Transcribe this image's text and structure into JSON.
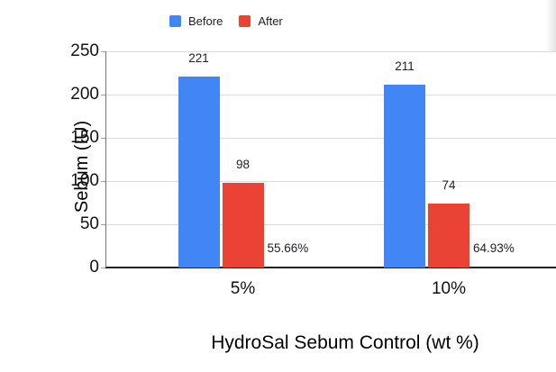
{
  "chart_data": {
    "type": "bar",
    "title": "",
    "categories": [
      "5%",
      "10%"
    ],
    "series": [
      {
        "name": "Before",
        "color": "#4285F4",
        "values": [
          221,
          211
        ]
      },
      {
        "name": "After",
        "color": "#EA4335",
        "values": [
          98,
          74
        ]
      }
    ],
    "value_labels": [
      [
        "221",
        "211"
      ],
      [
        "98",
        "74"
      ]
    ],
    "annotations": [
      {
        "category": "5%",
        "text": "55.66%"
      },
      {
        "category": "10%",
        "text": "64.93%"
      }
    ],
    "xlabel": "HydroSal Sebum Control (wt %)",
    "ylabel": "Sebum (IU)",
    "ylim": [
      0,
      250
    ],
    "yticks": [
      0,
      50,
      100,
      150,
      200,
      250
    ],
    "grid": true,
    "legend_position": "top",
    "colors": {
      "gridline": "#DCDCDC",
      "axis_line": "#212121",
      "plot_border": "#757575",
      "tick": "#9E9E9E",
      "text": "#202124",
      "background": "#FFFFFF"
    }
  }
}
